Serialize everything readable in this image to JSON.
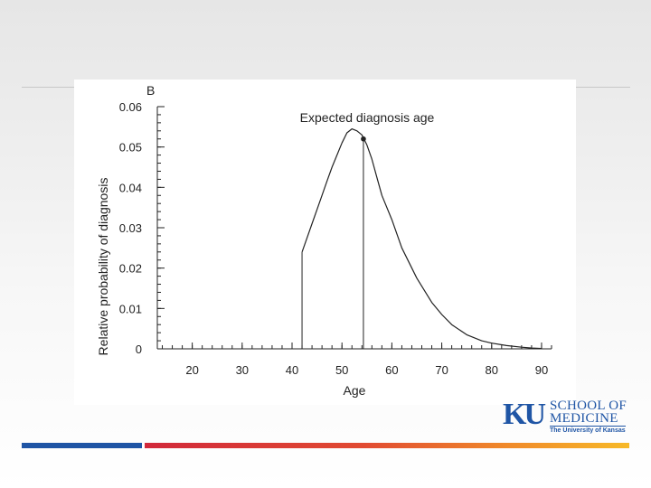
{
  "panel_label": "B",
  "chart_data": {
    "type": "line",
    "xlabel": "Age",
    "ylabel": "Relative probability of diagnosis",
    "xlim": [
      13,
      92
    ],
    "ylim": [
      0,
      0.06
    ],
    "x_ticks": [
      20,
      30,
      40,
      50,
      60,
      70,
      80,
      90
    ],
    "x_tick_labels": [
      "20",
      "30",
      "40",
      "50",
      "60",
      "70",
      "80",
      "90"
    ],
    "y_ticks": [
      0,
      0.01,
      0.02,
      0.03,
      0.04,
      0.05,
      0.06
    ],
    "y_tick_labels": [
      "0",
      "0.01",
      "0.02",
      "0.03",
      "0.04",
      "0.05",
      "0.06"
    ],
    "minor_tick_step": 2,
    "series": [
      {
        "x": [
          42,
          43,
          44,
          45,
          46,
          47,
          48,
          49,
          50,
          51,
          52,
          53,
          54,
          55,
          56,
          57,
          58,
          60,
          62,
          65,
          68,
          70,
          72,
          75,
          78,
          80,
          83,
          86,
          88,
          90
        ],
        "y": [
          0.024,
          0.0275,
          0.031,
          0.0345,
          0.038,
          0.0415,
          0.045,
          0.048,
          0.051,
          0.0535,
          0.0545,
          0.054,
          0.053,
          0.0505,
          0.047,
          0.0425,
          0.038,
          0.032,
          0.025,
          0.0175,
          0.0115,
          0.0085,
          0.006,
          0.0035,
          0.002,
          0.0014,
          0.0008,
          0.0004,
          0.0002,
          0.0001
        ]
      }
    ],
    "boundary_line_x": 42,
    "annotation": {
      "text": "Expected diagnosis age",
      "x": 54.3,
      "y": 0.052
    }
  },
  "logo": {
    "mark": "KU",
    "line1": "SCHOOL OF",
    "line2": "MEDICINE",
    "line3": "The University of Kansas"
  },
  "colors": {
    "curve": "#222222",
    "brand_blue": "#1f55a5",
    "brand_red": "#d1283a",
    "brand_yellow": "#f7b928"
  }
}
